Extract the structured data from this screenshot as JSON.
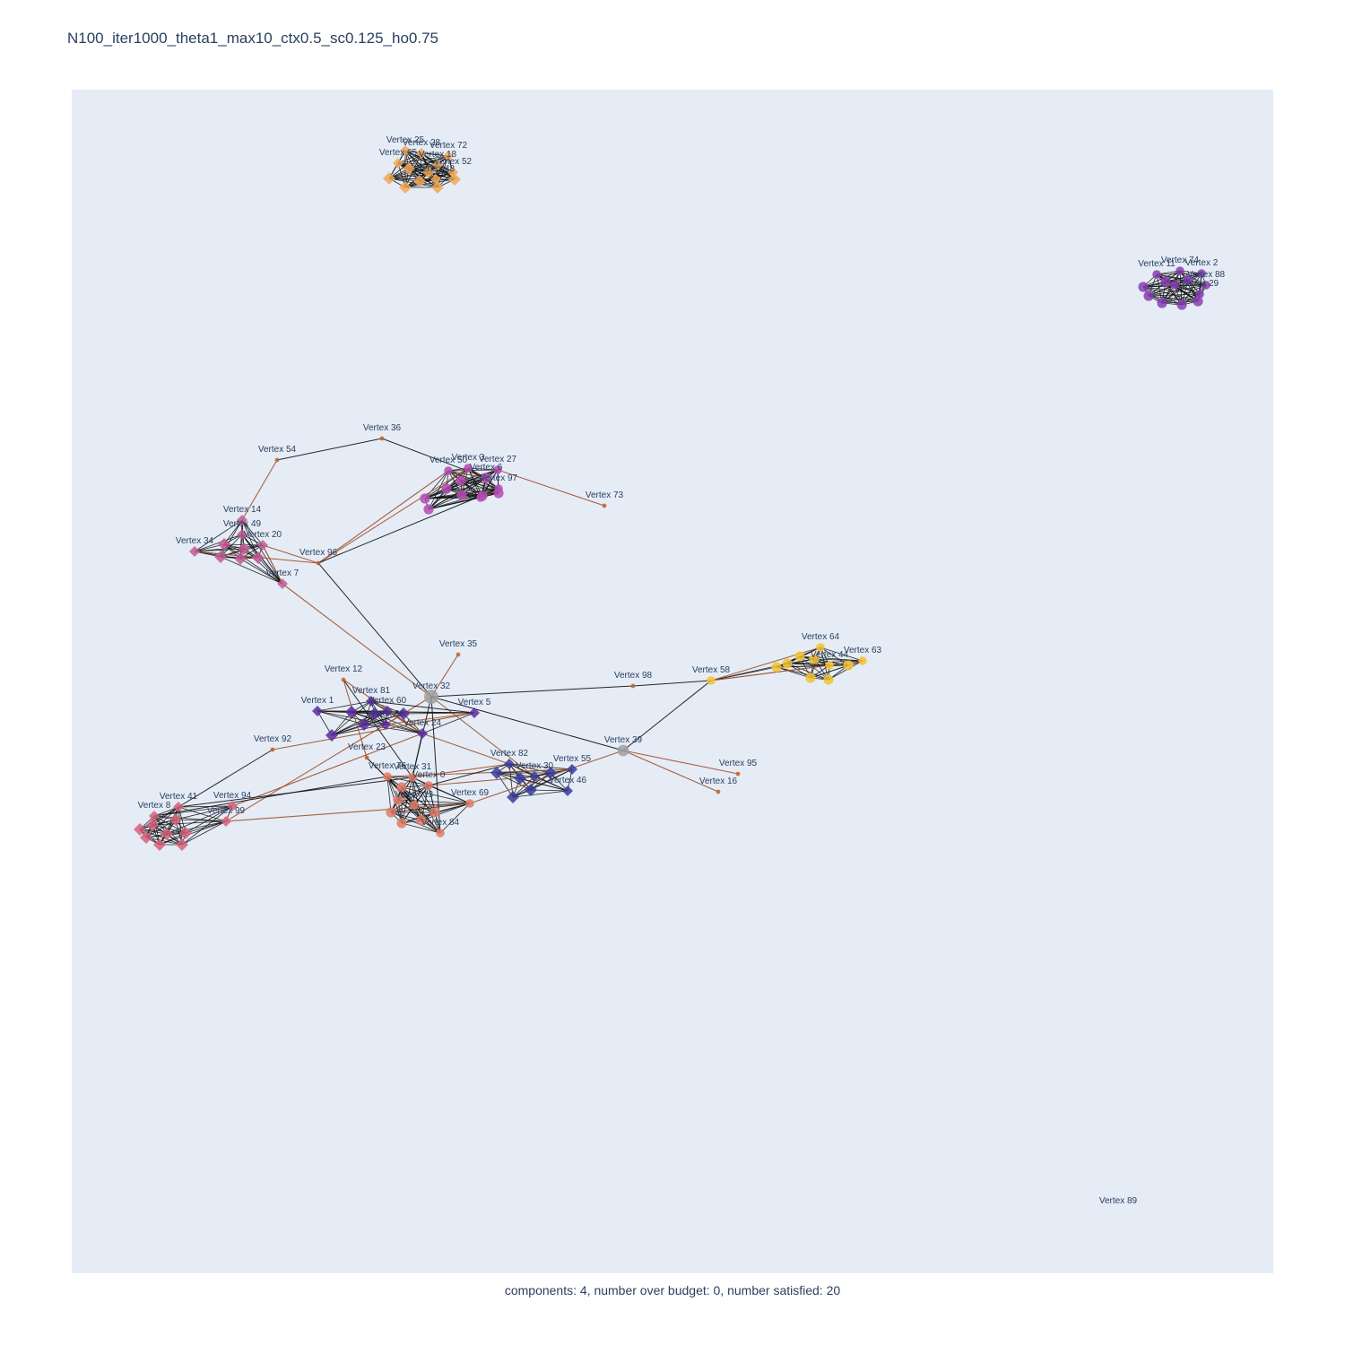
{
  "title": "N100_iter1000_theta1_max10_ctx0.5_sc0.125_ho0.75",
  "caption": "components: 4, number over budget: 0, number satisfied: 20",
  "colors": {
    "plot_bg": "#e5ecf6",
    "edge_black": "#111111",
    "edge_brown": "#a0522d",
    "label": "#2a3f5f"
  },
  "clusters": [
    {
      "name": "orange",
      "color": "#f0a957",
      "symbol": "diamond",
      "vertices": [
        "Vertex 25",
        "Vertex 28",
        "Vertex 72",
        "Vertex 65",
        "Vertex 18",
        "Vertex 52",
        "Vertex 48"
      ]
    },
    {
      "name": "purple-top-right",
      "color": "#8a3fb5",
      "symbol": "circle",
      "vertices": [
        "Vertex 74",
        "Vertex 11",
        "Vertex 2",
        "Vertex 88",
        "Vertex 29",
        "Vertex 33"
      ]
    },
    {
      "name": "magenta",
      "color": "#b54bb2",
      "symbol": "circle",
      "vertices": [
        "Vertex 3",
        "Vertex 27",
        "Vertex 50",
        "Vertex 6",
        "Vertex 97",
        "Vertex 19"
      ]
    },
    {
      "name": "pink",
      "color": "#c45b94",
      "symbol": "diamond",
      "vertices": [
        "Vertex 14",
        "Vertex 49",
        "Vertex 20",
        "Vertex 34",
        "Vertex 7"
      ]
    },
    {
      "name": "yellow",
      "color": "#f2c431",
      "symbol": "circle",
      "vertices": [
        "Vertex 64",
        "Vertex 63",
        "Vertex 44",
        "Vertex 58"
      ]
    },
    {
      "name": "violet",
      "color": "#5b2ba0",
      "symbol": "diamond",
      "vertices": [
        "Vertex 1",
        "Vertex 81",
        "Vertex 60",
        "Vertex 86",
        "Vertex 24",
        "Vertex 5"
      ]
    },
    {
      "name": "navy",
      "color": "#3a3c9a",
      "symbol": "diamond",
      "vertices": [
        "Vertex 82",
        "Vertex 55",
        "Vertex 30",
        "Vertex 46"
      ]
    },
    {
      "name": "salmon",
      "color": "#e07b66",
      "symbol": "circle",
      "vertices": [
        "Vertex 31",
        "Vertex 0",
        "Vertex 69",
        "Vertex 13",
        "Vertex 84",
        "Vertex 76"
      ]
    },
    {
      "name": "rose",
      "color": "#d6627a",
      "symbol": "diamond",
      "vertices": [
        "Vertex 41",
        "Vertex 8",
        "Vertex 94",
        "Vertex 99"
      ]
    },
    {
      "name": "gray",
      "color": "#a0a0a0",
      "symbol": "circle",
      "vertices": [
        "Vertex 32",
        "Vertex 39"
      ]
    }
  ],
  "vertex_labels": [
    "Vertex 25",
    "Vertex 28",
    "Vertex 72",
    "Vertex 65",
    "Vertex 18",
    "Vertex 52",
    "Vertex 48",
    "Vertex 74",
    "Vertex 11",
    "Vertex 2",
    "Vertex 88",
    "Vertex 29",
    "Vertex 36",
    "Vertex 54",
    "Vertex 3",
    "Vertex 27",
    "Vertex 50",
    "Vertex 6",
    "Vertex 97",
    "Vertex 73",
    "Vertex 14",
    "Vertex 49",
    "Vertex 20",
    "Vertex 34",
    "Vertex 96",
    "Vertex 7",
    "Vertex 64",
    "Vertex 63",
    "Vertex 44",
    "Vertex 35",
    "Vertex 12",
    "Vertex 98",
    "Vertex 58",
    "Vertex 32",
    "Vertex 1",
    "Vertex 81",
    "Vertex 60",
    "Vertex 86",
    "Vertex 5",
    "Vertex 24",
    "Vertex 92",
    "Vertex 23",
    "Vertex 39",
    "Vertex 82",
    "Vertex 55",
    "Vertex 30",
    "Vertex 95",
    "Vertex 16",
    "Vertex 46",
    "Vertex 76",
    "Vertex 31",
    "Vertex 0",
    "Vertex 69",
    "Vertex 13",
    "Vertex 84",
    "Vertex 41",
    "Vertex 94",
    "Vertex 8",
    "Vertex 99",
    "Vertex 89"
  ]
}
